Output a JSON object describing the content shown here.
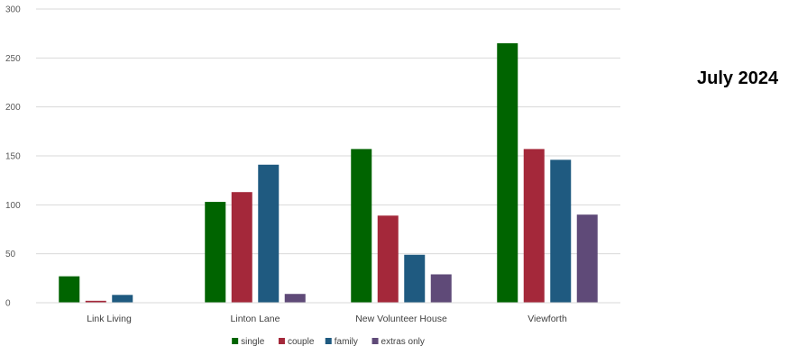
{
  "title": "July 2024",
  "chart_data": {
    "type": "bar",
    "title": "July 2024",
    "xlabel": "",
    "ylabel": "",
    "ylim": [
      0,
      300
    ],
    "yticks": [
      0,
      50,
      100,
      150,
      200,
      250,
      300
    ],
    "grid": true,
    "legend_position": "bottom",
    "categories": [
      "Link Living",
      "Linton Lane",
      "New Volunteer House",
      "Viewforth"
    ],
    "series": [
      {
        "name": "single",
        "color": "#006400",
        "values": [
          27,
          103,
          157,
          265
        ]
      },
      {
        "name": "couple",
        "color": "#A4283A",
        "values": [
          2,
          113,
          89,
          157
        ]
      },
      {
        "name": "family",
        "color": "#1F5A80",
        "values": [
          8,
          141,
          49,
          146
        ]
      },
      {
        "name": "extras only",
        "color": "#5F4A78",
        "values": [
          0,
          9,
          29,
          90
        ]
      }
    ]
  }
}
